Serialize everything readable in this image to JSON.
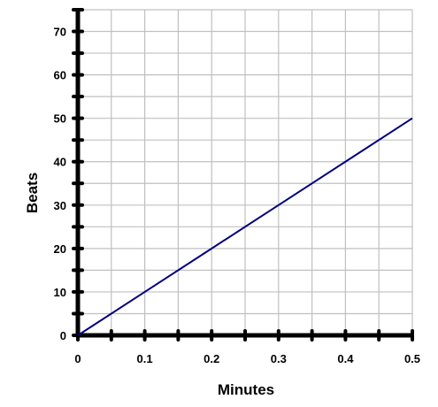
{
  "chart_data": {
    "type": "line",
    "title": "",
    "xlabel": "Minutes",
    "ylabel": "Beats",
    "xlim": [
      0,
      0.5
    ],
    "ylim": [
      0,
      75
    ],
    "x_ticks": [
      "0",
      "0.1",
      "0.2",
      "0.3",
      "0.4",
      "0.5"
    ],
    "y_ticks": [
      "0",
      "10",
      "20",
      "30",
      "40",
      "50",
      "60",
      "70"
    ],
    "x_minor_step": 0.05,
    "y_minor_step": 5,
    "grid": true,
    "legend": "none",
    "series": [
      {
        "x": [
          0,
          0.1,
          0.2,
          0.3,
          0.4,
          0.5
        ],
        "y": [
          0,
          10,
          20,
          30,
          40,
          50
        ]
      }
    ],
    "colors": {
      "line": "#000080",
      "grid": "#c0c0c0",
      "axis": "#000000"
    }
  }
}
